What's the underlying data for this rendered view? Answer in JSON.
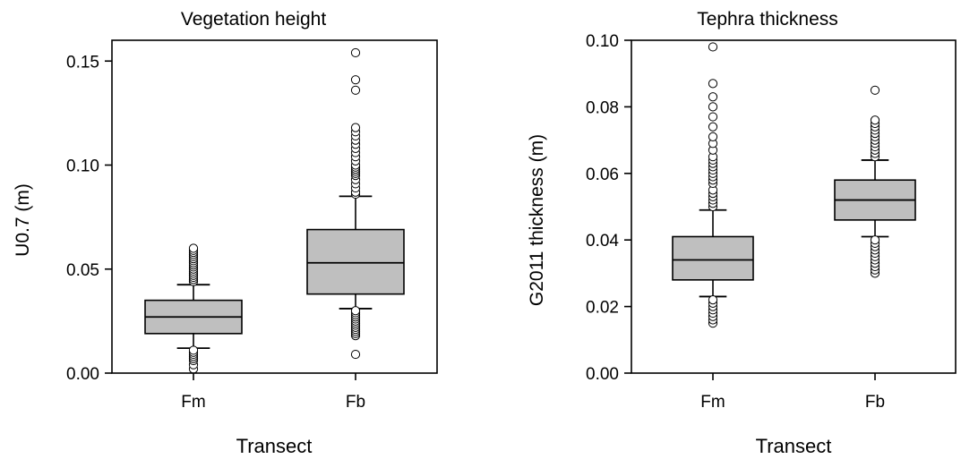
{
  "chart_data": [
    {
      "type": "box",
      "title": "Vegetation height",
      "xlabel": "Transect",
      "ylabel": "U0.7 (m)",
      "categories": [
        "Fm",
        "Fb"
      ],
      "ylim": [
        0,
        0.16
      ],
      "yticks": [
        0.0,
        0.05,
        0.1,
        0.15
      ],
      "ytick_labels": [
        "0.00",
        "0.05",
        "0.10",
        "0.15"
      ],
      "grid": false,
      "boxes": [
        {
          "category": "Fm",
          "whisker_low": 0.012,
          "q1": 0.019,
          "median": 0.027,
          "q3": 0.035,
          "whisker_high": 0.0425,
          "outliers": [
            0.002,
            0.004,
            0.006,
            0.007,
            0.008,
            0.009,
            0.01,
            0.011,
            0.044,
            0.045,
            0.046,
            0.047,
            0.048,
            0.049,
            0.05,
            0.051,
            0.052,
            0.053,
            0.054,
            0.055,
            0.056,
            0.057,
            0.058,
            0.059,
            0.06
          ]
        },
        {
          "category": "Fb",
          "whisker_low": 0.031,
          "q1": 0.038,
          "median": 0.053,
          "q3": 0.069,
          "whisker_high": 0.085,
          "outliers": [
            0.009,
            0.018,
            0.019,
            0.02,
            0.021,
            0.022,
            0.023,
            0.024,
            0.025,
            0.026,
            0.027,
            0.028,
            0.029,
            0.03,
            0.086,
            0.087,
            0.089,
            0.091,
            0.093,
            0.095,
            0.096,
            0.097,
            0.098,
            0.099,
            0.1,
            0.102,
            0.104,
            0.106,
            0.108,
            0.11,
            0.112,
            0.114,
            0.116,
            0.118,
            0.136,
            0.141,
            0.154
          ]
        }
      ]
    },
    {
      "type": "box",
      "title": "Tephra thickness",
      "xlabel": "Transect",
      "ylabel": "G2011 thickness (m)",
      "categories": [
        "Fm",
        "Fb"
      ],
      "ylim": [
        0,
        0.1
      ],
      "yticks": [
        0.0,
        0.02,
        0.04,
        0.06,
        0.08,
        0.1
      ],
      "ytick_labels": [
        "0.00",
        "0.02",
        "0.04",
        "0.06",
        "0.08",
        "0.10"
      ],
      "grid": false,
      "boxes": [
        {
          "category": "Fm",
          "whisker_low": 0.023,
          "q1": 0.028,
          "median": 0.034,
          "q3": 0.041,
          "whisker_high": 0.049,
          "outliers": [
            0.015,
            0.016,
            0.017,
            0.018,
            0.019,
            0.02,
            0.021,
            0.022,
            0.05,
            0.051,
            0.052,
            0.053,
            0.054,
            0.055,
            0.057,
            0.058,
            0.059,
            0.06,
            0.061,
            0.062,
            0.063,
            0.064,
            0.065,
            0.067,
            0.069,
            0.071,
            0.074,
            0.077,
            0.08,
            0.083,
            0.087,
            0.098
          ]
        },
        {
          "category": "Fb",
          "whisker_low": 0.041,
          "q1": 0.046,
          "median": 0.052,
          "q3": 0.058,
          "whisker_high": 0.064,
          "outliers": [
            0.03,
            0.031,
            0.032,
            0.033,
            0.034,
            0.035,
            0.036,
            0.037,
            0.038,
            0.039,
            0.04,
            0.065,
            0.066,
            0.067,
            0.068,
            0.069,
            0.07,
            0.071,
            0.072,
            0.073,
            0.074,
            0.075,
            0.076,
            0.085
          ]
        }
      ]
    }
  ]
}
